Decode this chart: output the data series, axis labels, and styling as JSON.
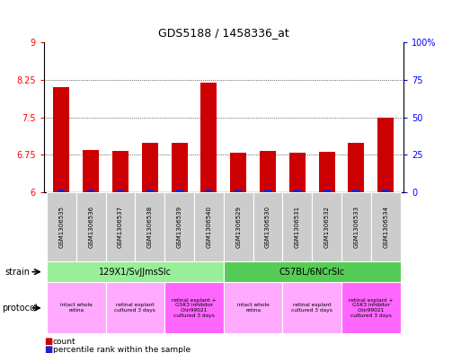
{
  "title": "GDS5188 / 1458336_at",
  "samples": [
    "GSM1306535",
    "GSM1306536",
    "GSM1306537",
    "GSM1306538",
    "GSM1306539",
    "GSM1306540",
    "GSM1306529",
    "GSM1306530",
    "GSM1306531",
    "GSM1306532",
    "GSM1306533",
    "GSM1306534"
  ],
  "counts": [
    8.1,
    6.85,
    6.83,
    7.0,
    7.0,
    8.2,
    6.8,
    6.83,
    6.8,
    6.81,
    7.0,
    7.5
  ],
  "percentiles": [
    2,
    2,
    2,
    2,
    2,
    2,
    2,
    2,
    2,
    2,
    2,
    2
  ],
  "ylim_left": [
    6,
    9
  ],
  "ylim_right": [
    0,
    100
  ],
  "yticks_left": [
    6,
    6.75,
    7.5,
    8.25,
    9
  ],
  "yticks_right": [
    0,
    25,
    50,
    75,
    100
  ],
  "ytick_labels_right": [
    "0",
    "25",
    "50",
    "75",
    "100%"
  ],
  "bar_color": "#cc0000",
  "percentile_color": "#2222cc",
  "grid_color": "black",
  "strain_groups": [
    {
      "label": "129X1/SvJJmsSlc",
      "start": 0,
      "end": 6,
      "color": "#99ee99"
    },
    {
      "label": "C57BL/6NCrSlc",
      "start": 6,
      "end": 12,
      "color": "#55cc55"
    }
  ],
  "protocol_groups": [
    {
      "label": "intact whole\nretina",
      "start": 0,
      "end": 2,
      "color": "#ffaaff"
    },
    {
      "label": "retinal explant\ncultured 3 days",
      "start": 2,
      "end": 4,
      "color": "#ffaaff"
    },
    {
      "label": "retinal explant +\nGSK3 inhibitor\nChir99021\ncultured 3 days",
      "start": 4,
      "end": 6,
      "color": "#ff66ff"
    },
    {
      "label": "intact whole\nretina",
      "start": 6,
      "end": 8,
      "color": "#ffaaff"
    },
    {
      "label": "retinal explant\ncultured 3 days",
      "start": 8,
      "end": 10,
      "color": "#ffaaff"
    },
    {
      "label": "retinal explant +\nGSK3 inhibitor\nChir99021\ncultured 3 days",
      "start": 10,
      "end": 12,
      "color": "#ff66ff"
    }
  ],
  "x_tick_bg": "#cccccc",
  "legend_count_color": "#cc0000",
  "legend_pct_color": "#2222cc",
  "fig_width": 5.13,
  "fig_height": 3.93,
  "fig_dpi": 100
}
